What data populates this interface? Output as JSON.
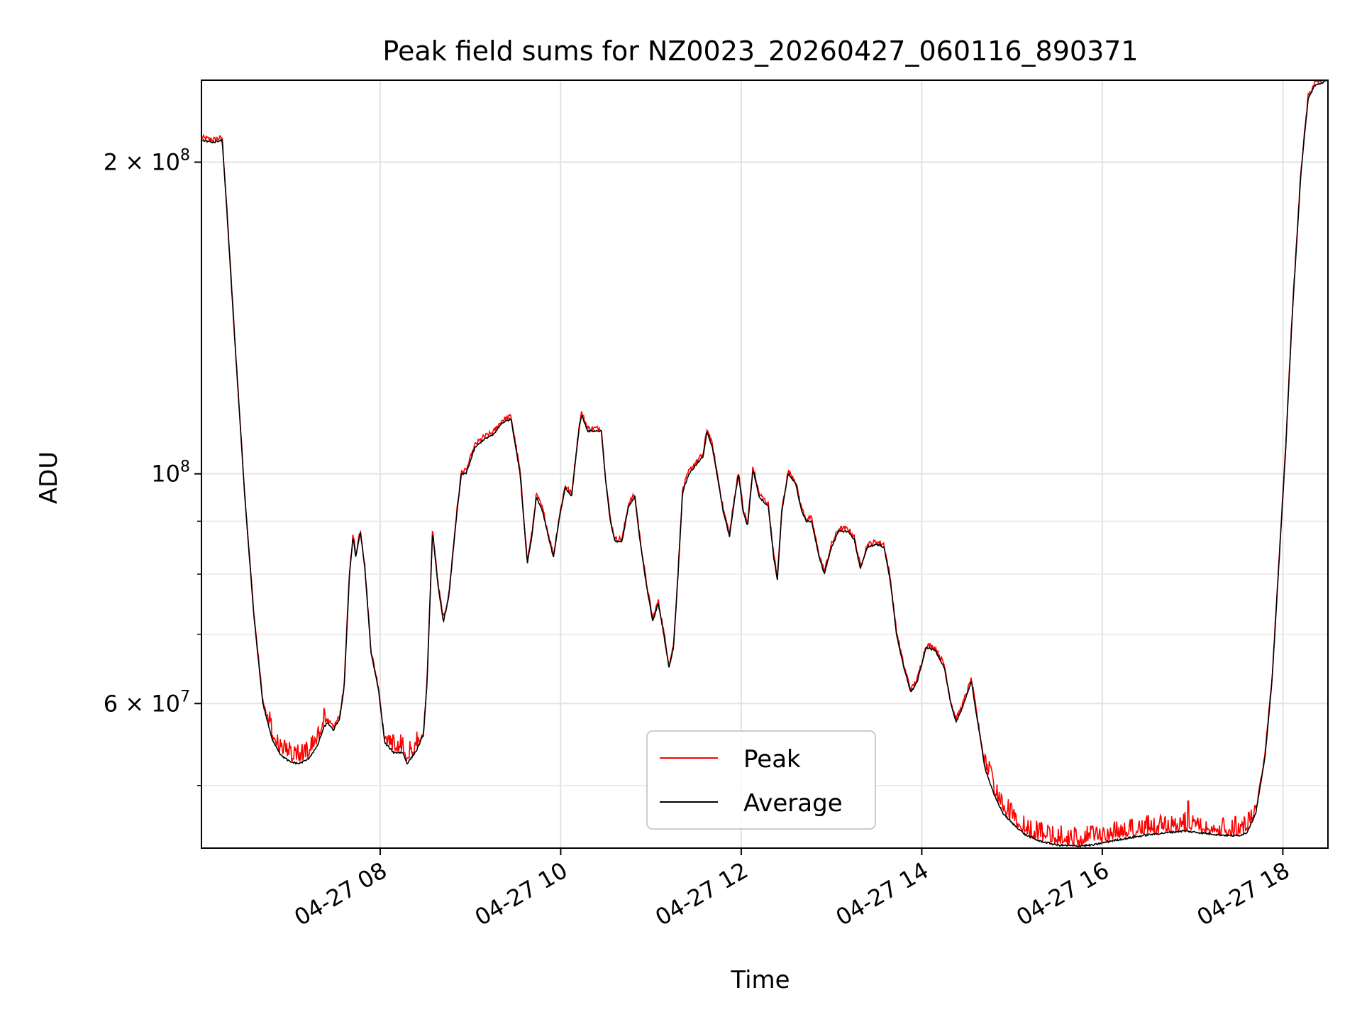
{
  "chart_data": {
    "type": "line",
    "title": "Peak field sums for NZ0023_20260427_060116_890371",
    "xlabel": "Time",
    "ylabel": "ADU",
    "yscale": "log",
    "ylim": [
      43500000,
      240000000
    ],
    "xlim_hours": [
      6.02,
      18.5
    ],
    "grid": true,
    "legend_position": "lower center",
    "x_ticks": [
      {
        "hour": 8,
        "label": "04-27 08"
      },
      {
        "hour": 10,
        "label": "04-27 10"
      },
      {
        "hour": 12,
        "label": "04-27 12"
      },
      {
        "hour": 14,
        "label": "04-27 14"
      },
      {
        "hour": 16,
        "label": "04-27 16"
      },
      {
        "hour": 18,
        "label": "04-27 18"
      }
    ],
    "y_major_ticks": [
      {
        "value": 100000000,
        "label": "10",
        "sup": "8",
        "prefix": ""
      },
      {
        "value": 60000000,
        "label": "6 × 10",
        "sup": "7",
        "prefix": ""
      },
      {
        "value": 200000000,
        "label": "2 × 10",
        "sup": "8",
        "prefix": ""
      }
    ],
    "y_minor_ticks": [
      50000000,
      70000000,
      80000000,
      90000000
    ],
    "series": [
      {
        "name": "Peak",
        "color": "#ff0000",
        "role": "peak"
      },
      {
        "name": "Average",
        "color": "#000000",
        "role": "average",
        "points": [
          [
            6.02,
            210000000.0
          ],
          [
            6.15,
            209000000.0
          ],
          [
            6.25,
            210000000.0
          ],
          [
            6.3,
            180000000.0
          ],
          [
            6.4,
            130000000.0
          ],
          [
            6.5,
            95000000.0
          ],
          [
            6.6,
            73000000.0
          ],
          [
            6.7,
            60000000.0
          ],
          [
            6.8,
            55500000.0
          ],
          [
            6.9,
            53500000.0
          ],
          [
            7.0,
            52700000.0
          ],
          [
            7.1,
            52500000.0
          ],
          [
            7.2,
            53000000.0
          ],
          [
            7.3,
            54500000.0
          ],
          [
            7.38,
            57000000.0
          ],
          [
            7.42,
            57500000.0
          ],
          [
            7.48,
            56500000.0
          ],
          [
            7.55,
            58000000.0
          ],
          [
            7.6,
            62000000.0
          ],
          [
            7.66,
            80000000.0
          ],
          [
            7.7,
            87000000.0
          ],
          [
            7.73,
            83000000.0
          ],
          [
            7.78,
            88000000.0
          ],
          [
            7.83,
            81000000.0
          ],
          [
            7.9,
            67000000.0
          ],
          [
            7.98,
            62000000.0
          ],
          [
            8.05,
            55000000.0
          ],
          [
            8.15,
            53800000.0
          ],
          [
            8.25,
            53800000.0
          ],
          [
            8.3,
            52500000.0
          ],
          [
            8.4,
            54000000.0
          ],
          [
            8.48,
            56000000.0
          ],
          [
            8.52,
            63000000.0
          ],
          [
            8.58,
            88000000.0
          ],
          [
            8.64,
            78000000.0
          ],
          [
            8.7,
            72000000.0
          ],
          [
            8.76,
            76000000.0
          ],
          [
            8.84,
            90000000.0
          ],
          [
            8.9,
            100000000.0
          ],
          [
            8.95,
            100000000.0
          ],
          [
            9.05,
            106000000.0
          ],
          [
            9.15,
            108000000.0
          ],
          [
            9.25,
            109000000.0
          ],
          [
            9.35,
            112000000.0
          ],
          [
            9.45,
            113000000.0
          ],
          [
            9.55,
            100000000.0
          ],
          [
            9.63,
            82000000.0
          ],
          [
            9.68,
            87000000.0
          ],
          [
            9.73,
            95000000.0
          ],
          [
            9.8,
            92000000.0
          ],
          [
            9.85,
            88000000.0
          ],
          [
            9.92,
            83000000.0
          ],
          [
            9.98,
            90000000.0
          ],
          [
            10.05,
            97000000.0
          ],
          [
            10.12,
            95000000.0
          ],
          [
            10.2,
            110000000.0
          ],
          [
            10.23,
            114000000.0
          ],
          [
            10.3,
            110000000.0
          ],
          [
            10.38,
            110000000.0
          ],
          [
            10.45,
            110000000.0
          ],
          [
            10.5,
            98000000.0
          ],
          [
            10.55,
            90000000.0
          ],
          [
            10.6,
            86000000.0
          ],
          [
            10.68,
            86000000.0
          ],
          [
            10.75,
            93000000.0
          ],
          [
            10.82,
            95000000.0
          ],
          [
            10.88,
            86000000.0
          ],
          [
            10.95,
            78000000.0
          ],
          [
            11.02,
            72000000.0
          ],
          [
            11.08,
            75000000.0
          ],
          [
            11.13,
            71000000.0
          ],
          [
            11.2,
            65000000.0
          ],
          [
            11.25,
            68000000.0
          ],
          [
            11.3,
            80000000.0
          ],
          [
            11.35,
            96000000.0
          ],
          [
            11.42,
            100000000.0
          ],
          [
            11.5,
            102000000.0
          ],
          [
            11.58,
            104000000.0
          ],
          [
            11.62,
            110000000.0
          ],
          [
            11.68,
            106000000.0
          ],
          [
            11.73,
            100000000.0
          ],
          [
            11.8,
            92000000.0
          ],
          [
            11.87,
            87000000.0
          ],
          [
            11.93,
            95000000.0
          ],
          [
            11.97,
            100000000.0
          ],
          [
            12.02,
            92000000.0
          ],
          [
            12.07,
            89000000.0
          ],
          [
            12.13,
            101000000.0
          ],
          [
            12.2,
            95000000.0
          ],
          [
            12.3,
            93000000.0
          ],
          [
            12.36,
            83000000.0
          ],
          [
            12.4,
            79000000.0
          ],
          [
            12.45,
            92000000.0
          ],
          [
            12.52,
            100000000.0
          ],
          [
            12.6,
            98000000.0
          ],
          [
            12.67,
            92000000.0
          ],
          [
            12.72,
            90000000.0
          ],
          [
            12.78,
            90000000.0
          ],
          [
            12.85,
            84000000.0
          ],
          [
            12.92,
            80000000.0
          ],
          [
            13.0,
            85000000.0
          ],
          [
            13.08,
            88000000.0
          ],
          [
            13.18,
            88000000.0
          ],
          [
            13.25,
            86500000.0
          ],
          [
            13.32,
            81000000.0
          ],
          [
            13.4,
            85000000.0
          ],
          [
            13.5,
            85500000.0
          ],
          [
            13.58,
            85000000.0
          ],
          [
            13.65,
            79000000.0
          ],
          [
            13.72,
            70000000.0
          ],
          [
            13.8,
            65000000.0
          ],
          [
            13.88,
            61500000.0
          ],
          [
            13.95,
            63000000.0
          ],
          [
            14.05,
            68000000.0
          ],
          [
            14.15,
            67500000.0
          ],
          [
            14.25,
            65000000.0
          ],
          [
            14.32,
            60000000.0
          ],
          [
            14.38,
            57500000.0
          ],
          [
            14.45,
            59500000.0
          ],
          [
            14.55,
            63000000.0
          ],
          [
            14.6,
            59000000.0
          ],
          [
            14.7,
            52000000.0
          ],
          [
            14.8,
            49000000.0
          ],
          [
            14.9,
            47000000.0
          ],
          [
            15.0,
            46000000.0
          ],
          [
            15.15,
            44800000.0
          ],
          [
            15.3,
            44200000.0
          ],
          [
            15.5,
            43800000.0
          ],
          [
            15.7,
            43700000.0
          ],
          [
            15.9,
            43800000.0
          ],
          [
            16.1,
            44200000.0
          ],
          [
            16.3,
            44500000.0
          ],
          [
            16.5,
            44800000.0
          ],
          [
            16.7,
            45000000.0
          ],
          [
            16.9,
            45200000.0
          ],
          [
            17.1,
            45000000.0
          ],
          [
            17.3,
            44800000.0
          ],
          [
            17.5,
            44700000.0
          ],
          [
            17.6,
            45000000.0
          ],
          [
            17.7,
            47000000.0
          ],
          [
            17.8,
            53000000.0
          ],
          [
            17.88,
            63000000.0
          ],
          [
            17.95,
            80000000.0
          ],
          [
            18.03,
            105000000.0
          ],
          [
            18.1,
            140000000.0
          ],
          [
            18.2,
            195000000.0
          ],
          [
            18.28,
            230000000.0
          ],
          [
            18.35,
            237000000.0
          ],
          [
            18.5,
            240000000.0
          ]
        ]
      }
    ]
  }
}
